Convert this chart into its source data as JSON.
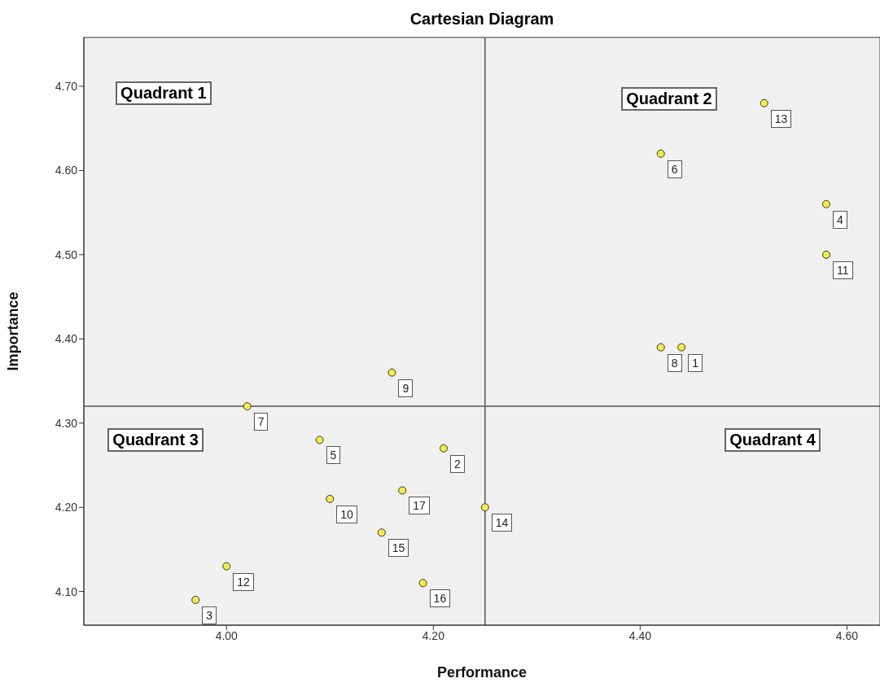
{
  "chart_data": {
    "type": "scatter",
    "title": "Cartesian Diagram",
    "xlabel": "Performance",
    "ylabel": "Importance",
    "x": [
      4.44,
      4.21,
      3.97,
      4.58,
      4.09,
      4.42,
      4.02,
      4.42,
      4.16,
      4.1,
      4.58,
      4.0,
      4.52,
      4.25,
      4.15,
      4.19,
      4.17
    ],
    "values": [
      4.39,
      4.27,
      4.09,
      4.56,
      4.28,
      4.62,
      4.32,
      4.39,
      4.36,
      4.21,
      4.5,
      4.13,
      4.68,
      4.2,
      4.17,
      4.11,
      4.22
    ],
    "color": "#f2ec4c",
    "marker": "circle",
    "grid": false,
    "xlim": [
      3.862,
      4.632
    ],
    "ylim": [
      4.06,
      4.758
    ],
    "xticks": [
      {
        "value": 4.0,
        "label": "4.00"
      },
      {
        "value": 4.2,
        "label": "4.20"
      },
      {
        "value": 4.4,
        "label": "4.40"
      },
      {
        "value": 4.6,
        "label": "4.60"
      }
    ],
    "yticks": [
      {
        "value": 4.1,
        "label": "4.10"
      },
      {
        "value": 4.2,
        "label": "4.20"
      },
      {
        "value": 4.3,
        "label": "4.30"
      },
      {
        "value": 4.4,
        "label": "4.40"
      },
      {
        "value": 4.5,
        "label": "4.50"
      },
      {
        "value": 4.6,
        "label": "4.60"
      },
      {
        "value": 4.7,
        "label": "4.70"
      }
    ],
    "ref_lines": [
      {
        "axis": "x",
        "value": 4.25,
        "color": "#555555"
      },
      {
        "axis": "y",
        "value": 4.32,
        "color": "#555555"
      }
    ],
    "annotations": [
      "Quadrant 1",
      "Quadrant 2",
      "Quadrant 3",
      "Quadrant 4",
      {
        "text": "1",
        "x": 4.44,
        "y": 4.39
      },
      {
        "text": "2",
        "x": 4.21,
        "y": 4.27
      },
      {
        "text": "3",
        "x": 3.97,
        "y": 4.09
      },
      {
        "text": "4",
        "x": 4.58,
        "y": 4.56
      },
      {
        "text": "5",
        "x": 4.09,
        "y": 4.28
      },
      {
        "text": "6",
        "x": 4.42,
        "y": 4.62
      },
      {
        "text": "7",
        "x": 4.02,
        "y": 4.32
      },
      {
        "text": "8",
        "x": 4.42,
        "y": 4.39
      },
      {
        "text": "9",
        "x": 4.16,
        "y": 4.36
      },
      {
        "text": "10",
        "x": 4.1,
        "y": 4.21
      },
      {
        "text": "11",
        "x": 4.58,
        "y": 4.5
      },
      {
        "text": "12",
        "x": 4.0,
        "y": 4.13
      },
      {
        "text": "13",
        "x": 4.52,
        "y": 4.68
      },
      {
        "text": "14",
        "x": 4.25,
        "y": 4.2
      },
      {
        "text": "15",
        "x": 4.15,
        "y": 4.17
      },
      {
        "text": "16",
        "x": 4.19,
        "y": 4.11
      },
      {
        "text": "17",
        "x": 4.17,
        "y": 4.22
      }
    ]
  }
}
